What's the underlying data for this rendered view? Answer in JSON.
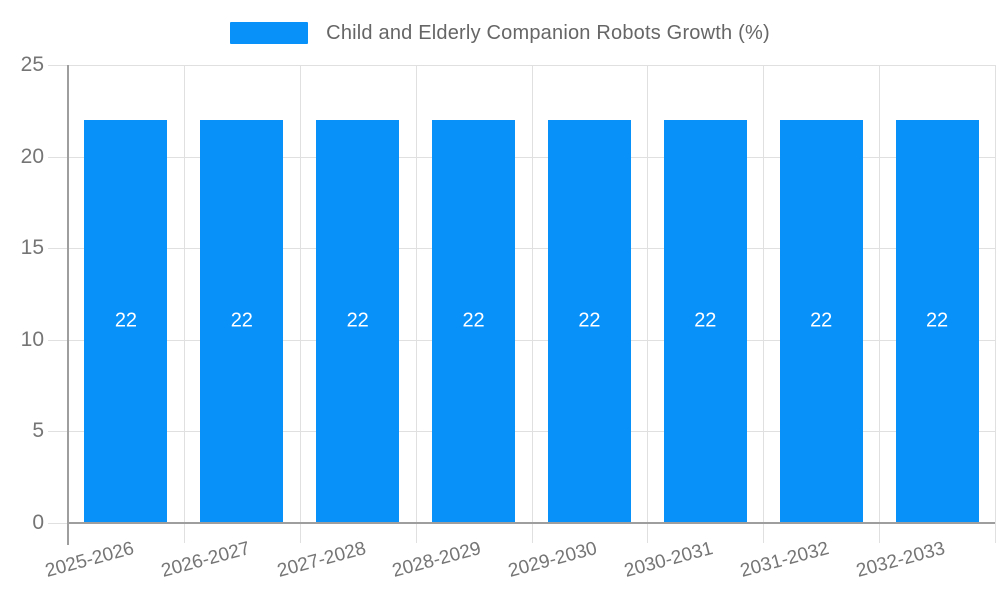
{
  "legend": {
    "title": "Child and Elderly Companion Robots Growth (%)"
  },
  "chart_data": {
    "type": "bar",
    "title": "Child and Elderly Companion Robots Growth (%)",
    "categories": [
      "2025-2026",
      "2026-2027",
      "2027-2028",
      "2028-2029",
      "2029-2030",
      "2030-2031",
      "2031-2032",
      "2032-2033"
    ],
    "values": [
      22,
      22,
      22,
      22,
      22,
      22,
      22,
      22
    ],
    "yticks": [
      25,
      20,
      15,
      10,
      5,
      0
    ],
    "ylim": [
      0,
      25
    ],
    "xlabel": "",
    "ylabel": "",
    "grid": true,
    "legend_position": "top",
    "bar_color": "#0991FA",
    "grid_color": "#E0E0E0",
    "axis_color": "#9E9E9E",
    "tick_label_color": "#757575",
    "title_color": "#666666",
    "bar_label_color": "#FFFFFF"
  }
}
